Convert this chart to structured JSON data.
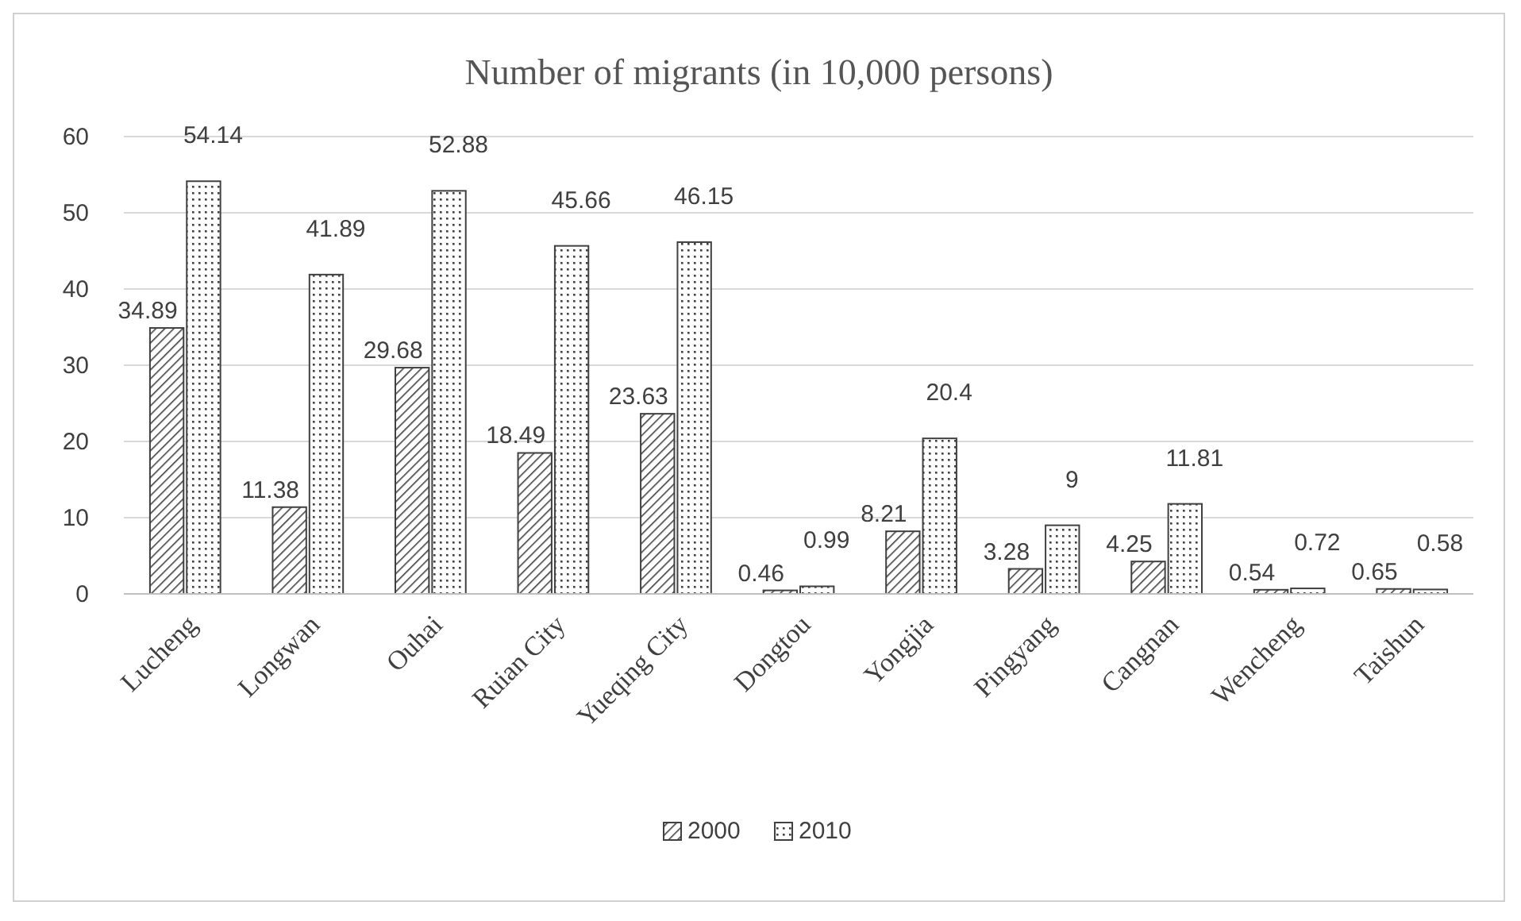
{
  "chart_data": {
    "type": "bar",
    "title": "Number of migrants (in 10,000 persons)",
    "categories": [
      "Lucheng",
      "Longwan",
      "Ouhai",
      "Ruian City",
      "Yueqing City",
      "Dongtou",
      "Yongjia",
      "Pingyang",
      "Cangnan",
      "Wencheng",
      "Taishun"
    ],
    "series": [
      {
        "name": "2000",
        "color": "#404040",
        "values": [
          34.89,
          11.38,
          29.68,
          18.49,
          23.63,
          0.46,
          8.21,
          3.28,
          4.25,
          0.54,
          0.65
        ]
      },
      {
        "name": "2010",
        "color": "#404040",
        "values": [
          54.14,
          41.89,
          52.88,
          45.66,
          46.15,
          0.99,
          20.4,
          9,
          11.81,
          0.72,
          0.58
        ]
      }
    ],
    "ylim": [
      0,
      60
    ],
    "yticks": [
      0,
      10,
      20,
      30,
      40,
      50,
      60
    ],
    "grid": "y",
    "legend": "bottom",
    "data_labels": true
  }
}
